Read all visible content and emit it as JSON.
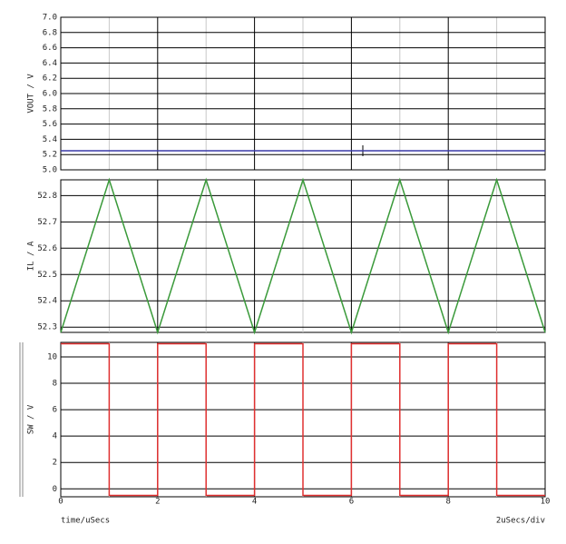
{
  "chart_data": [
    {
      "type": "line",
      "ylabel": "VOUT / V",
      "color": "#3a3aa8",
      "x": [
        0,
        10
      ],
      "values": [
        5.25,
        5.25
      ],
      "xlim": [
        0,
        10
      ],
      "ylim": [
        5.0,
        7.0
      ],
      "yticks": [
        {
          "value": 7.0,
          "label": "7.0"
        },
        6.8,
        6.6,
        6.4,
        6.2,
        {
          "value": 6.0,
          "label": "6.0"
        },
        5.8,
        5.6,
        5.4,
        5.2,
        {
          "value": 5.0,
          "label": "5.0"
        }
      ],
      "grid": true
    },
    {
      "type": "line",
      "ylabel": "IL / A",
      "color": "#3a9a3a",
      "x": [
        0,
        1,
        2,
        3,
        4,
        5,
        6,
        7,
        8,
        9,
        10
      ],
      "values": [
        52.28,
        52.86,
        52.28,
        52.86,
        52.28,
        52.86,
        52.28,
        52.86,
        52.28,
        52.86,
        52.28
      ],
      "xlim": [
        0,
        10
      ],
      "ylim": [
        52.28,
        52.86
      ],
      "yticks": [
        52.8,
        52.7,
        52.6,
        52.5,
        52.4,
        52.3
      ],
      "grid": true
    },
    {
      "type": "line",
      "ylabel": "SW / V",
      "color": "#e03030",
      "x": [
        0,
        1,
        1,
        2,
        2,
        3,
        3,
        4,
        4,
        5,
        5,
        6,
        6,
        7,
        7,
        8,
        8,
        9,
        9,
        10
      ],
      "values": [
        11,
        11,
        -0.5,
        -0.5,
        11,
        11,
        -0.5,
        -0.5,
        11,
        11,
        -0.5,
        -0.5,
        11,
        11,
        -0.5,
        -0.5,
        11,
        11,
        -0.5,
        -0.5
      ],
      "xlim": [
        0,
        10
      ],
      "ylim": [
        -0.6,
        11.1
      ],
      "yticks": [
        10,
        8,
        6,
        4,
        2,
        0
      ],
      "xticks": [
        0,
        2,
        4,
        6,
        8,
        10
      ],
      "xminorticks": [
        1,
        3,
        5,
        7,
        9
      ],
      "xlabel": "time/uSecs",
      "annotation": "2uSecs/div",
      "grid": true
    }
  ]
}
